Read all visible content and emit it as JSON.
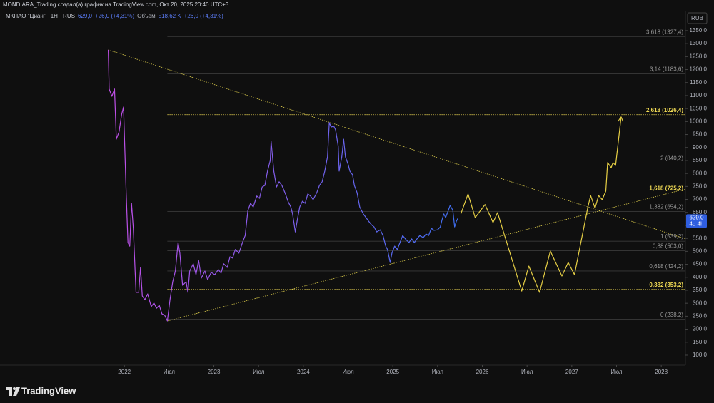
{
  "header": {
    "attribution": "MONDIARA_Trading создал(а) график на TradingView.com, Окт 20, 2025 20:40 UTC+3",
    "symbol": "МКПАО \"Циан\" · 1Н · RUS",
    "price": "629,0",
    "change": "+26,0 (+4,31%)",
    "volume_label": "Объем",
    "volume": "518,62 K",
    "volume_change": "+26,0 (+4,31%)"
  },
  "footer": {
    "brand": "TradingView"
  },
  "chart_data": {
    "type": "line",
    "currency": "RUB",
    "xlim": [
      2020.61,
      2028.27
    ],
    "ylim": [
      61.5,
      1413
    ],
    "xticks": [
      2022,
      {
        "value": 2022.5,
        "label": "Июл"
      },
      2023,
      {
        "value": 2023.5,
        "label": "Июл"
      },
      2024,
      {
        "value": 2024.5,
        "label": "Июл"
      },
      2025,
      {
        "value": 2025.5,
        "label": "Июл"
      },
      2026,
      {
        "value": 2026.5,
        "label": "Июл"
      },
      2027,
      {
        "value": 2027.5,
        "label": "Июл"
      },
      2028
    ],
    "yticks": [
      {
        "value": 100,
        "label": "100,0"
      },
      {
        "value": 150,
        "label": "150,0"
      },
      {
        "value": 200,
        "label": "200,0"
      },
      {
        "value": 250,
        "label": "250,0"
      },
      {
        "value": 300,
        "label": "300,0"
      },
      {
        "value": 350,
        "label": "350,0"
      },
      {
        "value": 400,
        "label": "400,0"
      },
      {
        "value": 450,
        "label": "450,0"
      },
      {
        "value": 500,
        "label": "500,0"
      },
      {
        "value": 550,
        "label": "550,0"
      },
      {
        "value": 600,
        "label": "600,0"
      },
      {
        "value": 650,
        "label": "650,0"
      },
      {
        "value": 700,
        "label": "700,0"
      },
      {
        "value": 750,
        "label": "750,0"
      },
      {
        "value": 800,
        "label": "800,0"
      },
      {
        "value": 850,
        "label": "850,0"
      },
      {
        "value": 900,
        "label": "900,0"
      },
      {
        "value": 950,
        "label": "950,0"
      },
      {
        "value": 1000,
        "label": "1000,0"
      },
      {
        "value": 1050,
        "label": "1050,0"
      },
      {
        "value": 1100,
        "label": "1100,0"
      },
      {
        "value": 1150,
        "label": "1150,0"
      },
      {
        "value": 1200,
        "label": "1200,0"
      },
      {
        "value": 1250,
        "label": "1250,0"
      },
      {
        "value": 1300,
        "label": "1300,0"
      },
      {
        "value": 1350,
        "label": "1350,0"
      }
    ],
    "series": [
      {
        "color_start": "#c04ee6",
        "color_end": "#3f6ff2",
        "x": [
          2021.82,
          2021.83,
          2021.86,
          2021.89,
          2021.91,
          2021.94,
          2021.97,
          2021.99,
          2022.02,
          2022.04,
          2022.06,
          2022.08,
          2022.1,
          2022.13,
          2022.16,
          2022.18,
          2022.2,
          2022.23,
          2022.26,
          2022.3,
          2022.33,
          2022.36,
          2022.39,
          2022.42,
          2022.45,
          2022.48,
          2022.51,
          2022.54,
          2022.57,
          2022.6,
          2022.62,
          2022.65,
          2022.69,
          2022.71,
          2022.73,
          2022.77,
          2022.8,
          2022.83,
          2022.86,
          2022.9,
          2022.93,
          2022.97,
          2023.01,
          2023.05,
          2023.08,
          2023.11,
          2023.15,
          2023.18,
          2023.21,
          2023.24,
          2023.28,
          2023.32,
          2023.35,
          2023.38,
          2023.41,
          2023.44,
          2023.48,
          2023.51,
          2023.54,
          2023.57,
          2023.6,
          2023.63,
          2023.64,
          2023.67,
          2023.7,
          2023.73,
          2023.76,
          2023.8,
          2023.83,
          2023.86,
          2023.88,
          2023.91,
          2023.93,
          2023.96,
          2023.99,
          2024.02,
          2024.05,
          2024.08,
          2024.11,
          2024.15,
          2024.18,
          2024.21,
          2024.24,
          2024.27,
          2024.29,
          2024.31,
          2024.34,
          2024.36,
          2024.39,
          2024.4,
          2024.43,
          2024.45,
          2024.47,
          2024.5,
          2024.52,
          2024.55,
          2024.57,
          2024.6,
          2024.63,
          2024.67,
          2024.7,
          2024.73,
          2024.76,
          2024.79,
          2024.82,
          2024.86,
          2024.89,
          2024.92,
          2024.94,
          2024.97,
          2024.99,
          2025.02,
          2025.05,
          2025.08,
          2025.11,
          2025.14,
          2025.18,
          2025.21,
          2025.24,
          2025.27,
          2025.3,
          2025.34,
          2025.37,
          2025.4,
          2025.43,
          2025.46,
          2025.5,
          2025.53,
          2025.55,
          2025.57,
          2025.59,
          2025.62,
          2025.64,
          2025.67,
          2025.69,
          2025.71,
          2025.73
        ],
        "values": [
          1276,
          1125,
          1097,
          1125,
          932,
          960,
          1028,
          1056,
          726,
          534,
          520,
          685,
          589,
          342,
          342,
          438,
          328,
          314,
          336,
          287,
          301,
          281,
          292,
          259,
          254,
          232,
          314,
          383,
          424,
          534,
          493,
          369,
          383,
          342,
          424,
          452,
          410,
          465,
          397,
          424,
          391,
          419,
          410,
          430,
          416,
          452,
          438,
          479,
          474,
          507,
          493,
          534,
          561,
          658,
          685,
          671,
          713,
          704,
          748,
          754,
          809,
          850,
          924,
          809,
          748,
          768,
          754,
          721,
          691,
          671,
          644,
          575,
          616,
          671,
          693,
          685,
          721,
          713,
          699,
          726,
          754,
          768,
          809,
          864,
          996,
          979,
          982,
          968,
          905,
          809,
          864,
          932,
          864,
          836,
          809,
          795,
          754,
          726,
          671,
          644,
          630,
          616,
          603,
          594,
          575,
          583,
          561,
          520,
          507,
          457,
          493,
          520,
          507,
          534,
          561,
          548,
          534,
          548,
          534,
          548,
          561,
          553,
          567,
          561,
          589,
          581,
          583,
          594,
          622,
          644,
          630,
          658,
          677,
          658,
          594,
          616,
          629
        ]
      },
      {
        "color": "#e6cf45",
        "x": [
          2025.76,
          2025.84,
          2025.92,
          2026.03,
          2026.12,
          2026.17,
          2026.44,
          2026.52,
          2026.64,
          2026.76,
          2026.89,
          2026.96,
          2027.03,
          2027.18,
          2027.21,
          2027.26,
          2027.3,
          2027.34,
          2027.38,
          2027.4,
          2027.44,
          2027.46,
          2027.49,
          2027.55
        ],
        "values": [
          644,
          721,
          630,
          680,
          611,
          649,
          347,
          443,
          342,
          501,
          405,
          457,
          410,
          671,
          715,
          666,
          715,
          699,
          732,
          842,
          822,
          842,
          831,
          1015
        ]
      }
    ],
    "trendlines": [
      {
        "color": "#d9c94a",
        "x": [
          2021.82,
          2028.27
        ],
        "values": [
          1276,
          548
        ]
      },
      {
        "color": "#d9c94a",
        "x": [
          2022.48,
          2028.27
        ],
        "values": [
          232,
          740
        ]
      }
    ],
    "fib_start": 2022.48,
    "fib_levels": [
      {
        "value": 1327.4,
        "label": "3,618 (1327,4)",
        "color": "#7b7b7b"
      },
      {
        "value": 1183.6,
        "label": "3,14 (1183,6)",
        "color": "#7b7b7b"
      },
      {
        "value": 1026.4,
        "label": "2,618 (1026,4)",
        "color": "#f2dc55"
      },
      {
        "value": 840.2,
        "label": "2 (840,2)",
        "color": "#7b7b7b"
      },
      {
        "value": 725.2,
        "label": "1,618 (725,2)",
        "color": "#f2dc55"
      },
      {
        "value": 654.2,
        "label": "1,382 (654,2)",
        "color": "#7b7b7b"
      },
      {
        "value": 539.2,
        "label": "1 (539,2)",
        "color": "#7b7b7b"
      },
      {
        "value": 503.0,
        "label": "0,88 (503,0)",
        "color": "#7b7b7b"
      },
      {
        "value": 424.2,
        "label": "0,618 (424,2)",
        "color": "#7b7b7b"
      },
      {
        "value": 353.2,
        "label": "0,382 (353,2)",
        "color": "#f2dc55"
      },
      {
        "value": 238.2,
        "label": "0 (238,2)",
        "color": "#7b7b7b"
      }
    ],
    "last_price": {
      "value": 629,
      "label": "629,0",
      "countdown": "4d 4h",
      "color": "#2f5ee0"
    }
  }
}
